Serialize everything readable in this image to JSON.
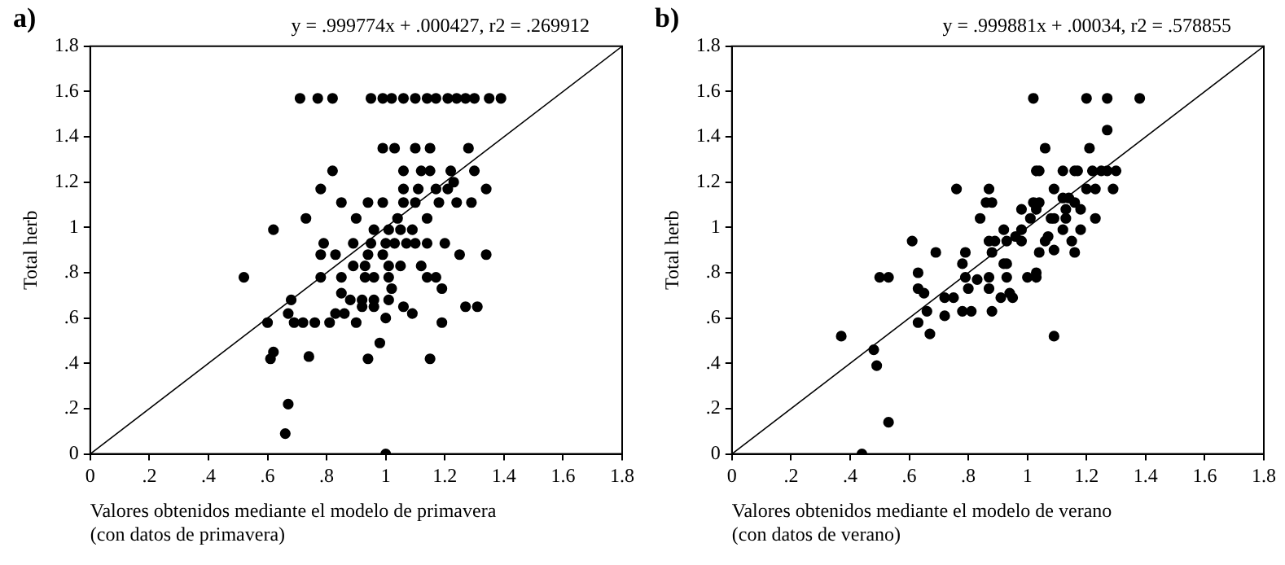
{
  "chart_data": [
    {
      "type": "scatter",
      "title": "a)",
      "annotations": [
        "y = .999774x + .000427, r2 = .269912"
      ],
      "xlabel": "Valores obtenidos mediante el modelo de primavera\n(con datos de primavera)",
      "ylabel": "Total herb",
      "xlim": [
        0,
        1.8
      ],
      "ylim": [
        0,
        1.8
      ],
      "xticks": [
        0,
        {
          "value": 0.2,
          "label": ".2"
        },
        {
          "value": 0.4,
          "label": ".4"
        },
        {
          "value": 0.6,
          "label": ".6"
        },
        {
          "value": 0.8,
          "label": ".8"
        },
        1,
        1.2,
        1.4,
        1.6,
        1.8
      ],
      "yticks": [
        0,
        {
          "value": 0.2,
          "label": ".2"
        },
        {
          "value": 0.4,
          "label": ".4"
        },
        {
          "value": 0.6,
          "label": ".6"
        },
        {
          "value": 0.8,
          "label": ".8"
        },
        1,
        1.2,
        1.4,
        1.6,
        1.8
      ],
      "grid": false,
      "legend": false,
      "series": [
        {
          "marker": "circle",
          "color": "#000000",
          "x": [
            0.71,
            0.77,
            0.82,
            0.95,
            0.99,
            1.02,
            1.06,
            1.1,
            1.14,
            1.17,
            1.21,
            1.24,
            1.27,
            1.3,
            1.35,
            1.39,
            0.99,
            1.03,
            1.1,
            1.15,
            1.28,
            0.82,
            1.06,
            1.12,
            1.15,
            1.22,
            1.3,
            1.23,
            0.78,
            1.06,
            1.11,
            1.17,
            1.21,
            1.34,
            0.85,
            0.94,
            0.99,
            1.06,
            1.1,
            1.18,
            1.24,
            1.29,
            0.73,
            0.9,
            1.04,
            1.14,
            0.62,
            0.96,
            1.01,
            1.05,
            1.09,
            0.79,
            0.89,
            0.95,
            1.0,
            1.03,
            1.07,
            1.1,
            1.14,
            1.2,
            0.78,
            0.83,
            0.94,
            0.99,
            1.25,
            1.34,
            0.89,
            0.93,
            1.01,
            1.05,
            1.12,
            0.52,
            0.78,
            0.85,
            0.93,
            0.96,
            1.01,
            1.14,
            1.17,
            1.02,
            1.19,
            0.85,
            0.68,
            0.88,
            0.92,
            0.96,
            1.01,
            0.92,
            0.96,
            1.06,
            1.27,
            1.31,
            0.67,
            0.83,
            0.86,
            1.09,
            1.0,
            0.6,
            0.69,
            0.72,
            0.76,
            0.81,
            0.9,
            1.19,
            0.98,
            0.62,
            0.74,
            0.61,
            0.94,
            1.15,
            0.67,
            0.66,
            1.0
          ],
          "values": [
            1.57,
            1.57,
            1.57,
            1.57,
            1.57,
            1.57,
            1.57,
            1.57,
            1.57,
            1.57,
            1.57,
            1.57,
            1.57,
            1.57,
            1.57,
            1.57,
            1.35,
            1.35,
            1.35,
            1.35,
            1.35,
            1.25,
            1.25,
            1.25,
            1.25,
            1.25,
            1.25,
            1.2,
            1.17,
            1.17,
            1.17,
            1.17,
            1.17,
            1.17,
            1.11,
            1.11,
            1.11,
            1.11,
            1.11,
            1.11,
            1.11,
            1.11,
            1.04,
            1.04,
            1.04,
            1.04,
            0.99,
            0.99,
            0.99,
            0.99,
            0.99,
            0.93,
            0.93,
            0.93,
            0.93,
            0.93,
            0.93,
            0.93,
            0.93,
            0.93,
            0.88,
            0.88,
            0.88,
            0.88,
            0.88,
            0.88,
            0.83,
            0.83,
            0.83,
            0.83,
            0.83,
            0.78,
            0.78,
            0.78,
            0.78,
            0.78,
            0.78,
            0.78,
            0.78,
            0.73,
            0.73,
            0.71,
            0.68,
            0.68,
            0.68,
            0.68,
            0.68,
            0.65,
            0.65,
            0.65,
            0.65,
            0.65,
            0.62,
            0.62,
            0.62,
            0.62,
            0.6,
            0.58,
            0.58,
            0.58,
            0.58,
            0.58,
            0.58,
            0.58,
            0.49,
            0.45,
            0.43,
            0.42,
            0.42,
            0.42,
            0.22,
            0.09,
            0
          ]
        },
        {
          "type": "line",
          "color": "#000000",
          "x": [
            0,
            1.8
          ],
          "values": [
            0,
            1.8
          ]
        }
      ]
    },
    {
      "type": "scatter",
      "title": "b)",
      "annotations": [
        "y = .999881x + .00034, r2 = .578855"
      ],
      "xlabel": "Valores obtenidos mediante el modelo de verano\n(con datos de verano)",
      "ylabel": "Total herb",
      "xlim": [
        0,
        1.8
      ],
      "ylim": [
        0,
        1.8
      ],
      "xticks": [
        0,
        {
          "value": 0.2,
          "label": ".2"
        },
        {
          "value": 0.4,
          "label": ".4"
        },
        {
          "value": 0.6,
          "label": ".6"
        },
        {
          "value": 0.8,
          "label": ".8"
        },
        1,
        1.2,
        1.4,
        1.6,
        1.8
      ],
      "yticks": [
        0,
        {
          "value": 0.2,
          "label": ".2"
        },
        {
          "value": 0.4,
          "label": ".4"
        },
        {
          "value": 0.6,
          "label": ".6"
        },
        {
          "value": 0.8,
          "label": ".8"
        },
        1,
        1.2,
        1.4,
        1.6,
        1.8
      ],
      "grid": false,
      "legend": false,
      "series": [
        {
          "marker": "circle",
          "color": "#000000",
          "x": [
            1.02,
            1.2,
            1.27,
            1.38,
            1.27,
            1.06,
            1.21,
            1.03,
            1.04,
            1.12,
            1.16,
            1.17,
            1.22,
            1.25,
            1.27,
            1.3,
            0.76,
            0.87,
            1.09,
            1.2,
            1.23,
            1.29,
            1.12,
            1.14,
            0.88,
            0.86,
            1.02,
            1.04,
            1.16,
            0.98,
            1.03,
            1.13,
            1.18,
            0.84,
            1.01,
            1.08,
            1.09,
            1.13,
            1.23,
            0.92,
            0.98,
            1.12,
            1.18,
            0.96,
            1.07,
            0.61,
            0.87,
            0.89,
            0.93,
            0.98,
            1.06,
            1.15,
            1.09,
            0.69,
            0.79,
            0.88,
            1.04,
            1.16,
            0.78,
            0.92,
            0.93,
            0.63,
            1.03,
            0.53,
            0.5,
            0.79,
            0.87,
            0.93,
            1.0,
            1.03,
            0.83,
            0.63,
            0.8,
            0.87,
            0.65,
            0.94,
            0.72,
            0.75,
            0.91,
            0.95,
            0.66,
            0.78,
            0.81,
            0.88,
            0.72,
            0.63,
            0.67,
            0.37,
            1.09,
            0.48,
            0.49,
            0.53,
            0.44
          ],
          "values": [
            1.57,
            1.57,
            1.57,
            1.57,
            1.43,
            1.35,
            1.35,
            1.25,
            1.25,
            1.25,
            1.25,
            1.25,
            1.25,
            1.25,
            1.25,
            1.25,
            1.17,
            1.17,
            1.17,
            1.17,
            1.17,
            1.17,
            1.13,
            1.13,
            1.11,
            1.11,
            1.11,
            1.11,
            1.11,
            1.08,
            1.08,
            1.08,
            1.08,
            1.04,
            1.04,
            1.04,
            1.04,
            1.04,
            1.04,
            0.99,
            0.99,
            0.99,
            0.99,
            0.96,
            0.96,
            0.94,
            0.94,
            0.94,
            0.94,
            0.94,
            0.94,
            0.94,
            0.9,
            0.89,
            0.89,
            0.89,
            0.89,
            0.89,
            0.84,
            0.84,
            0.84,
            0.8,
            0.8,
            0.78,
            0.78,
            0.78,
            0.78,
            0.78,
            0.78,
            0.78,
            0.77,
            0.73,
            0.73,
            0.73,
            0.71,
            0.71,
            0.69,
            0.69,
            0.69,
            0.69,
            0.63,
            0.63,
            0.63,
            0.63,
            0.61,
            0.58,
            0.53,
            0.52,
            0.52,
            0.46,
            0.39,
            0.14,
            0
          ]
        },
        {
          "type": "line",
          "color": "#000000",
          "x": [
            0,
            1.8
          ],
          "values": [
            0,
            1.8
          ]
        }
      ]
    }
  ]
}
